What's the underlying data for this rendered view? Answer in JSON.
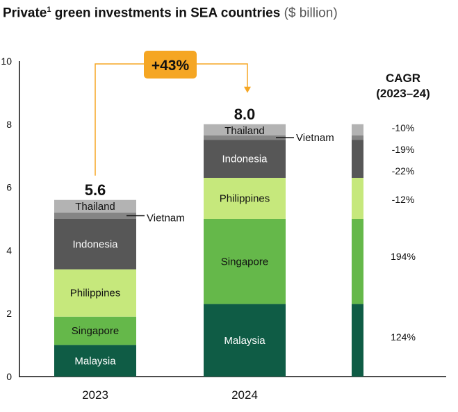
{
  "title": {
    "text": "Private",
    "sup": "1",
    "text2": " green investments in SEA countries",
    "unit": "($ billion)"
  },
  "chart_data": {
    "type": "bar",
    "stacked": true,
    "categories": [
      "2023",
      "2024"
    ],
    "ylim": [
      0,
      10
    ],
    "yticks": [
      0,
      2,
      4,
      6,
      8,
      10
    ],
    "grid": false,
    "series": [
      {
        "name": "Malaysia",
        "values": [
          1.0,
          2.3
        ],
        "color": "#0f5c45",
        "label_color": "#ffffff"
      },
      {
        "name": "Singapore",
        "values": [
          0.9,
          2.7
        ],
        "color": "#65b84a",
        "label_color": "#111111"
      },
      {
        "name": "Philippines",
        "values": [
          1.5,
          1.3
        ],
        "color": "#c6e87c",
        "label_color": "#111111"
      },
      {
        "name": "Indonesia",
        "values": [
          1.6,
          1.2
        ],
        "color": "#575757",
        "label_color": "#ffffff"
      },
      {
        "name": "Vietnam",
        "values": [
          0.2,
          0.15
        ],
        "color": "#858585",
        "label_color": "#111111"
      },
      {
        "name": "Thailand",
        "values": [
          0.4,
          0.35
        ],
        "color": "#b3b3b3",
        "label_color": "#111111"
      }
    ],
    "totals": [
      "5.6",
      "8.0"
    ],
    "change_label": "+43%",
    "cagr_title_line1": "CAGR",
    "cagr_title_line2": "(2023–24)",
    "cagr": [
      {
        "series": "Thailand",
        "value": "-10%"
      },
      {
        "series": "Vietnam",
        "value": "-19%"
      },
      {
        "series": "Indonesia",
        "value": "-22%"
      },
      {
        "series": "Philippines",
        "value": "-12%"
      },
      {
        "series": "Singapore",
        "value": "194%"
      },
      {
        "series": "Malaysia",
        "value": "124%"
      }
    ]
  }
}
